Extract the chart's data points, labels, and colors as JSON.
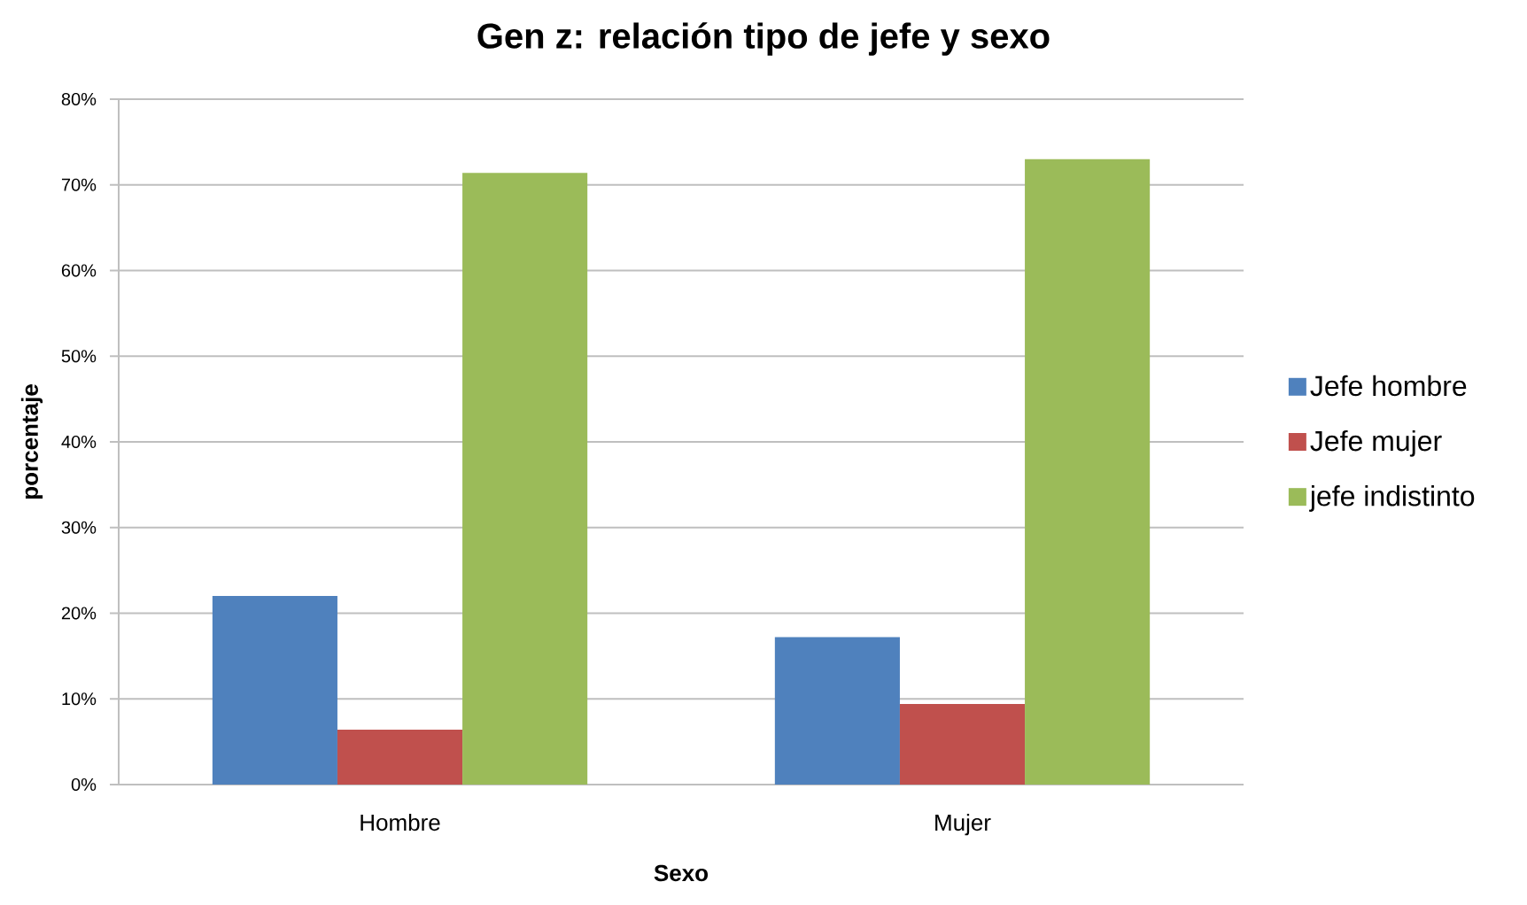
{
  "chart_data": {
    "type": "bar",
    "title": "Gen z: relación tipo de jefe y sexo",
    "xlabel": "Sexo",
    "ylabel": "porcentaje",
    "categories": [
      "Hombre",
      "Mujer"
    ],
    "series": [
      {
        "name": "Jefe hombre",
        "color": "#4f81bd",
        "values": [
          22.0,
          17.2
        ]
      },
      {
        "name": "Jefe mujer",
        "color": "#c0504d",
        "values": [
          6.4,
          9.4
        ]
      },
      {
        "name": "jefe indistinto",
        "color": "#9bbb59",
        "values": [
          71.4,
          73.0
        ]
      }
    ],
    "ylim": [
      0,
      80
    ],
    "yticks": [
      {
        "value": 0,
        "label": "0%"
      },
      {
        "value": 10,
        "label": "10%"
      },
      {
        "value": 20,
        "label": "20%"
      },
      {
        "value": 30,
        "label": "30%"
      },
      {
        "value": 40,
        "label": "40%"
      },
      {
        "value": 50,
        "label": "50%"
      },
      {
        "value": 60,
        "label": "60%"
      },
      {
        "value": 70,
        "label": "70%"
      },
      {
        "value": 80,
        "label": "80%"
      }
    ],
    "grid": "y",
    "legend": "right"
  }
}
